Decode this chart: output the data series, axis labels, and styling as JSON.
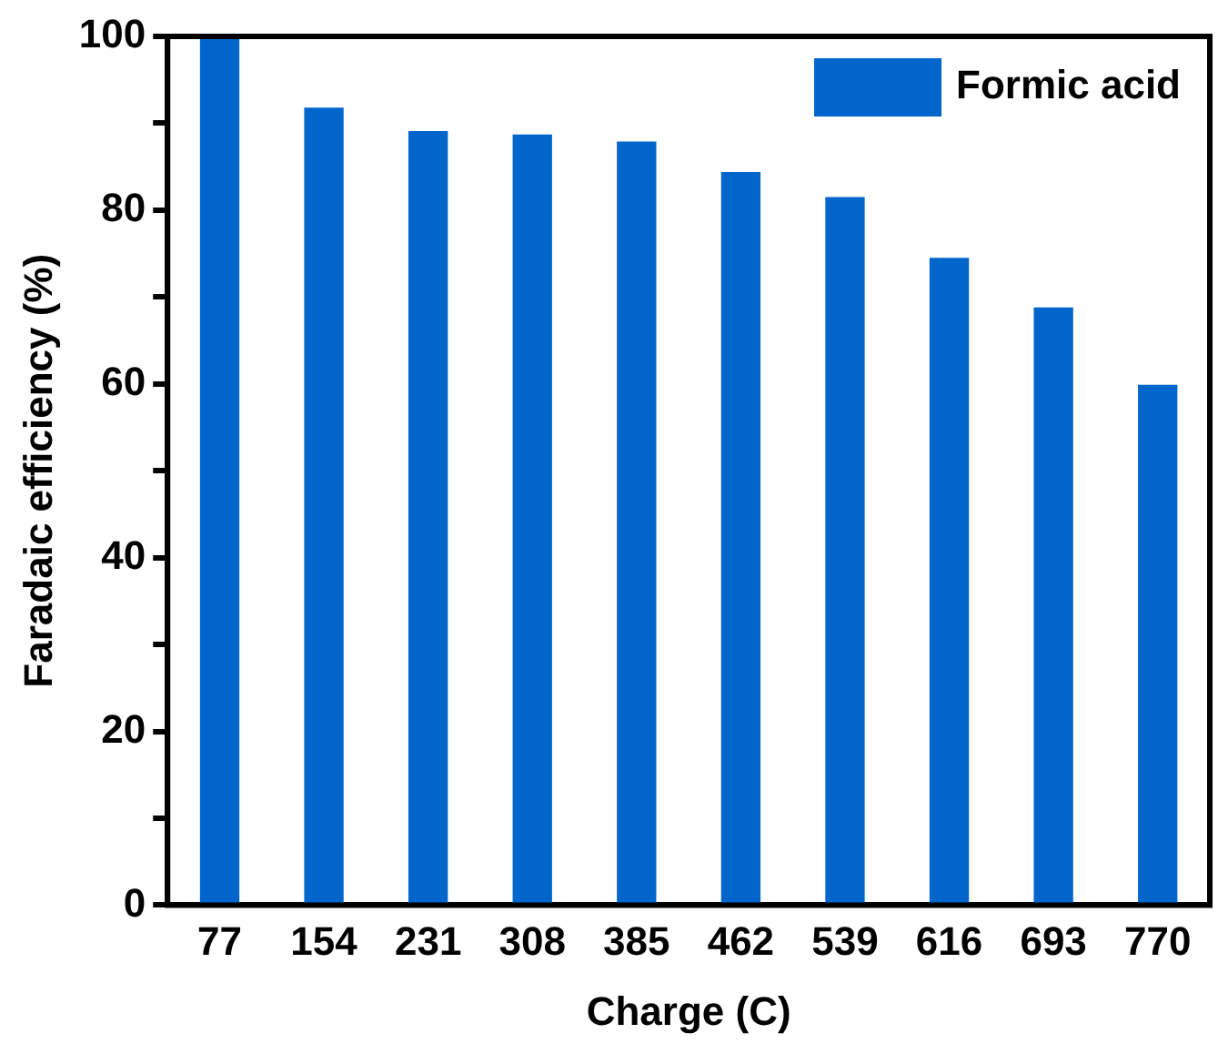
{
  "chart_data": {
    "type": "bar",
    "xlabel": "Charge (C)",
    "ylabel": "Faradaic efficiency (%)",
    "categories": [
      "77",
      "154",
      "231",
      "308",
      "385",
      "462",
      "539",
      "616",
      "693",
      "770"
    ],
    "series": [
      {
        "name": "Formic acid",
        "color": "#0066cc",
        "values": [
          100,
          91.8,
          89.1,
          88.7,
          87.9,
          84.4,
          81.5,
          74.5,
          68.8,
          59.9
        ]
      }
    ],
    "ylim": [
      0,
      100
    ],
    "yticks": [
      0,
      {
        "value": 10,
        "label": null
      },
      20,
      {
        "value": 30,
        "label": null
      },
      40,
      {
        "value": 50,
        "label": null
      },
      60,
      {
        "value": 70,
        "label": null
      },
      80,
      {
        "value": 90,
        "label": null
      },
      100
    ],
    "grid": false,
    "legend": "top right"
  }
}
